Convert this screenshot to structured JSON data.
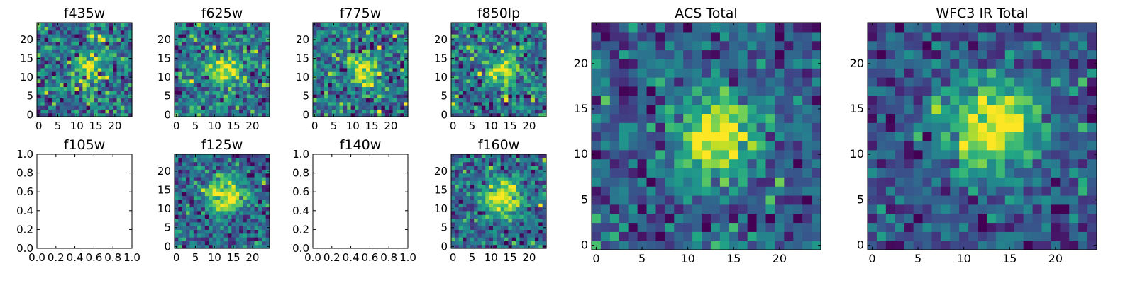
{
  "figure": {
    "background": "#ffffff"
  },
  "chart_data": [
    {
      "id": "f435w",
      "type": "heatmap",
      "title": "f435w",
      "xlim": [
        -0.5,
        24.5
      ],
      "ylim": [
        -0.5,
        24.5
      ],
      "xticks": [
        0,
        5,
        10,
        15,
        20
      ],
      "yticks": [
        0,
        5,
        10,
        15,
        20
      ],
      "has_image": true,
      "colormap": "viridis",
      "seed": 11,
      "peak": {
        "x": 13,
        "y": 13,
        "amp": 0.32,
        "sigma": 3.0
      },
      "noise": 0.95
    },
    {
      "id": "f625w",
      "type": "heatmap",
      "title": "f625w",
      "xlim": [
        -0.5,
        24.5
      ],
      "ylim": [
        -0.5,
        24.5
      ],
      "xticks": [
        0,
        5,
        10,
        15,
        20
      ],
      "yticks": [
        0,
        5,
        10,
        15,
        20
      ],
      "has_image": true,
      "colormap": "viridis",
      "seed": 23,
      "peak": {
        "x": 13,
        "y": 12,
        "amp": 0.35,
        "sigma": 3.0
      },
      "noise": 0.95
    },
    {
      "id": "f775w",
      "type": "heatmap",
      "title": "f775w",
      "xlim": [
        -0.5,
        24.5
      ],
      "ylim": [
        -0.5,
        24.5
      ],
      "xticks": [
        0,
        5,
        10,
        15,
        20
      ],
      "yticks": [
        0,
        5,
        10,
        15,
        20
      ],
      "has_image": true,
      "colormap": "viridis",
      "seed": 37,
      "peak": {
        "x": 13,
        "y": 12,
        "amp": 0.4,
        "sigma": 2.6
      },
      "noise": 0.95
    },
    {
      "id": "f850lp",
      "type": "heatmap",
      "title": "f850lp",
      "xlim": [
        -0.5,
        24.5
      ],
      "ylim": [
        -0.5,
        24.5
      ],
      "xticks": [
        0,
        5,
        10,
        15,
        20
      ],
      "yticks": [
        0,
        5,
        10,
        15,
        20
      ],
      "has_image": true,
      "colormap": "viridis",
      "seed": 41,
      "peak": {
        "x": 13,
        "y": 12,
        "amp": 0.35,
        "sigma": 3.2
      },
      "noise": 0.95
    },
    {
      "id": "f105w",
      "type": "heatmap",
      "title": "f105w",
      "xlim": [
        0.0,
        1.0
      ],
      "ylim": [
        0.0,
        1.0
      ],
      "xticks": [
        0.0,
        0.2,
        0.4,
        0.6,
        0.8,
        1.0
      ],
      "yticks": [
        0.0,
        0.2,
        0.4,
        0.6,
        0.8,
        1.0
      ],
      "xticklabels": [
        "0.0",
        "0.2",
        "0.4",
        "0.6",
        "0.8",
        "1.0"
      ],
      "yticklabels": [
        "0.0",
        "0.2",
        "0.4",
        "0.6",
        "0.8",
        "1.0"
      ],
      "has_image": false
    },
    {
      "id": "f125w",
      "type": "heatmap",
      "title": "f125w",
      "xlim": [
        -0.5,
        24.5
      ],
      "ylim": [
        -0.5,
        24.5
      ],
      "xticks": [
        0,
        5,
        10,
        15,
        20
      ],
      "yticks": [
        0,
        5,
        10,
        15,
        20
      ],
      "has_image": true,
      "colormap": "viridis",
      "seed": 53,
      "peak": {
        "x": 13,
        "y": 13,
        "amp": 0.45,
        "sigma": 3.5
      },
      "noise": 0.75
    },
    {
      "id": "f140w",
      "type": "heatmap",
      "title": "f140w",
      "xlim": [
        0.0,
        1.0
      ],
      "ylim": [
        0.0,
        1.0
      ],
      "xticks": [
        0.0,
        0.2,
        0.4,
        0.6,
        0.8,
        1.0
      ],
      "yticks": [
        0.0,
        0.2,
        0.4,
        0.6,
        0.8,
        1.0
      ],
      "xticklabels": [
        "0.0",
        "0.2",
        "0.4",
        "0.6",
        "0.8",
        "1.0"
      ],
      "yticklabels": [
        "0.0",
        "0.2",
        "0.4",
        "0.6",
        "0.8",
        "1.0"
      ],
      "has_image": false
    },
    {
      "id": "f160w",
      "type": "heatmap",
      "title": "f160w",
      "xlim": [
        -0.5,
        24.5
      ],
      "ylim": [
        -0.5,
        24.5
      ],
      "xticks": [
        0,
        5,
        10,
        15,
        20
      ],
      "yticks": [
        0,
        5,
        10,
        15,
        20
      ],
      "has_image": true,
      "colormap": "viridis",
      "seed": 67,
      "peak": {
        "x": 13,
        "y": 13,
        "amp": 0.45,
        "sigma": 3.5
      },
      "noise": 0.75
    },
    {
      "id": "acs_total",
      "type": "heatmap",
      "title": "ACS Total",
      "xlim": [
        -0.5,
        24.5
      ],
      "ylim": [
        -0.5,
        24.5
      ],
      "xticks": [
        0,
        5,
        10,
        15,
        20
      ],
      "yticks": [
        0,
        5,
        10,
        15,
        20
      ],
      "has_image": true,
      "colormap": "viridis",
      "seed": 79,
      "peak": {
        "x": 13,
        "y": 12,
        "amp": 0.5,
        "sigma": 3.0
      },
      "noise": 0.65
    },
    {
      "id": "wfc3_total",
      "type": "heatmap",
      "title": "WFC3 IR Total",
      "xlim": [
        -0.5,
        24.5
      ],
      "ylim": [
        -0.5,
        24.5
      ],
      "xticks": [
        0,
        5,
        10,
        15,
        20
      ],
      "yticks": [
        0,
        5,
        10,
        15,
        20
      ],
      "has_image": true,
      "colormap": "viridis",
      "seed": 97,
      "peak": {
        "x": 13,
        "y": 13,
        "amp": 0.5,
        "sigma": 3.5
      },
      "noise": 0.6
    }
  ]
}
